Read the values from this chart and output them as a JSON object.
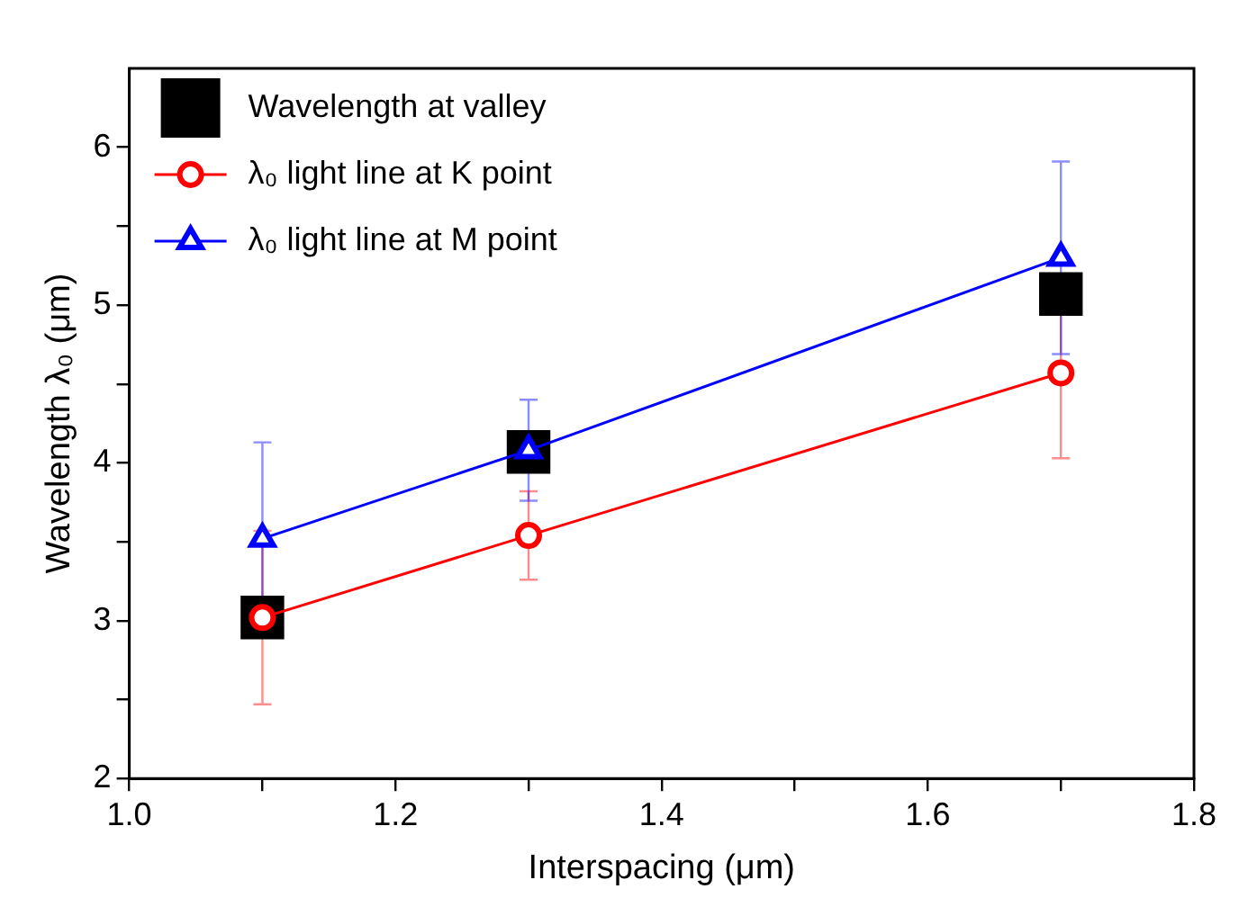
{
  "chart_data": {
    "type": "scatter",
    "xlabel": "Interspacing (μm)",
    "ylabel": "Wavelength λ₀ (μm)",
    "x": [
      1.1,
      1.3,
      1.7
    ],
    "series": [
      {
        "name": "Wavelength at valley",
        "type": "scatter",
        "color": "#000000",
        "marker": "square",
        "values": [
          3.02,
          4.07,
          5.07
        ]
      },
      {
        "name": "λ₀ light line at K point",
        "type": "line",
        "color": "#ff0000",
        "marker": "circle",
        "values": [
          3.02,
          3.54,
          4.57
        ],
        "errors": [
          0.55,
          0.28,
          0.54
        ]
      },
      {
        "name": "λ₀ light line at M point",
        "type": "line",
        "color": "#0000ff",
        "marker": "triangle",
        "values": [
          3.52,
          4.08,
          5.3
        ],
        "errors": [
          0.61,
          0.32,
          0.61
        ]
      }
    ],
    "xlim": [
      1.0,
      1.8
    ],
    "xticks": [
      {
        "value": 1.0,
        "label": "1.0"
      },
      {
        "value": 1.1,
        "label": null
      },
      {
        "value": 1.2,
        "label": "1.2"
      },
      {
        "value": 1.3,
        "label": null
      },
      {
        "value": 1.4,
        "label": "1.4"
      },
      {
        "value": 1.5,
        "label": null
      },
      {
        "value": 1.6,
        "label": "1.6"
      },
      {
        "value": 1.7,
        "label": null
      },
      {
        "value": 1.8,
        "label": "1.8"
      }
    ],
    "ylim": [
      2,
      6.5
    ],
    "yticks": [
      2,
      {
        "value": 2.5,
        "label": null
      },
      3,
      {
        "value": 3.5,
        "label": null
      },
      4,
      {
        "value": 4.5,
        "label": null
      },
      5,
      {
        "value": 5.5,
        "label": null
      },
      6
    ],
    "grid": false,
    "legend": "top left"
  }
}
